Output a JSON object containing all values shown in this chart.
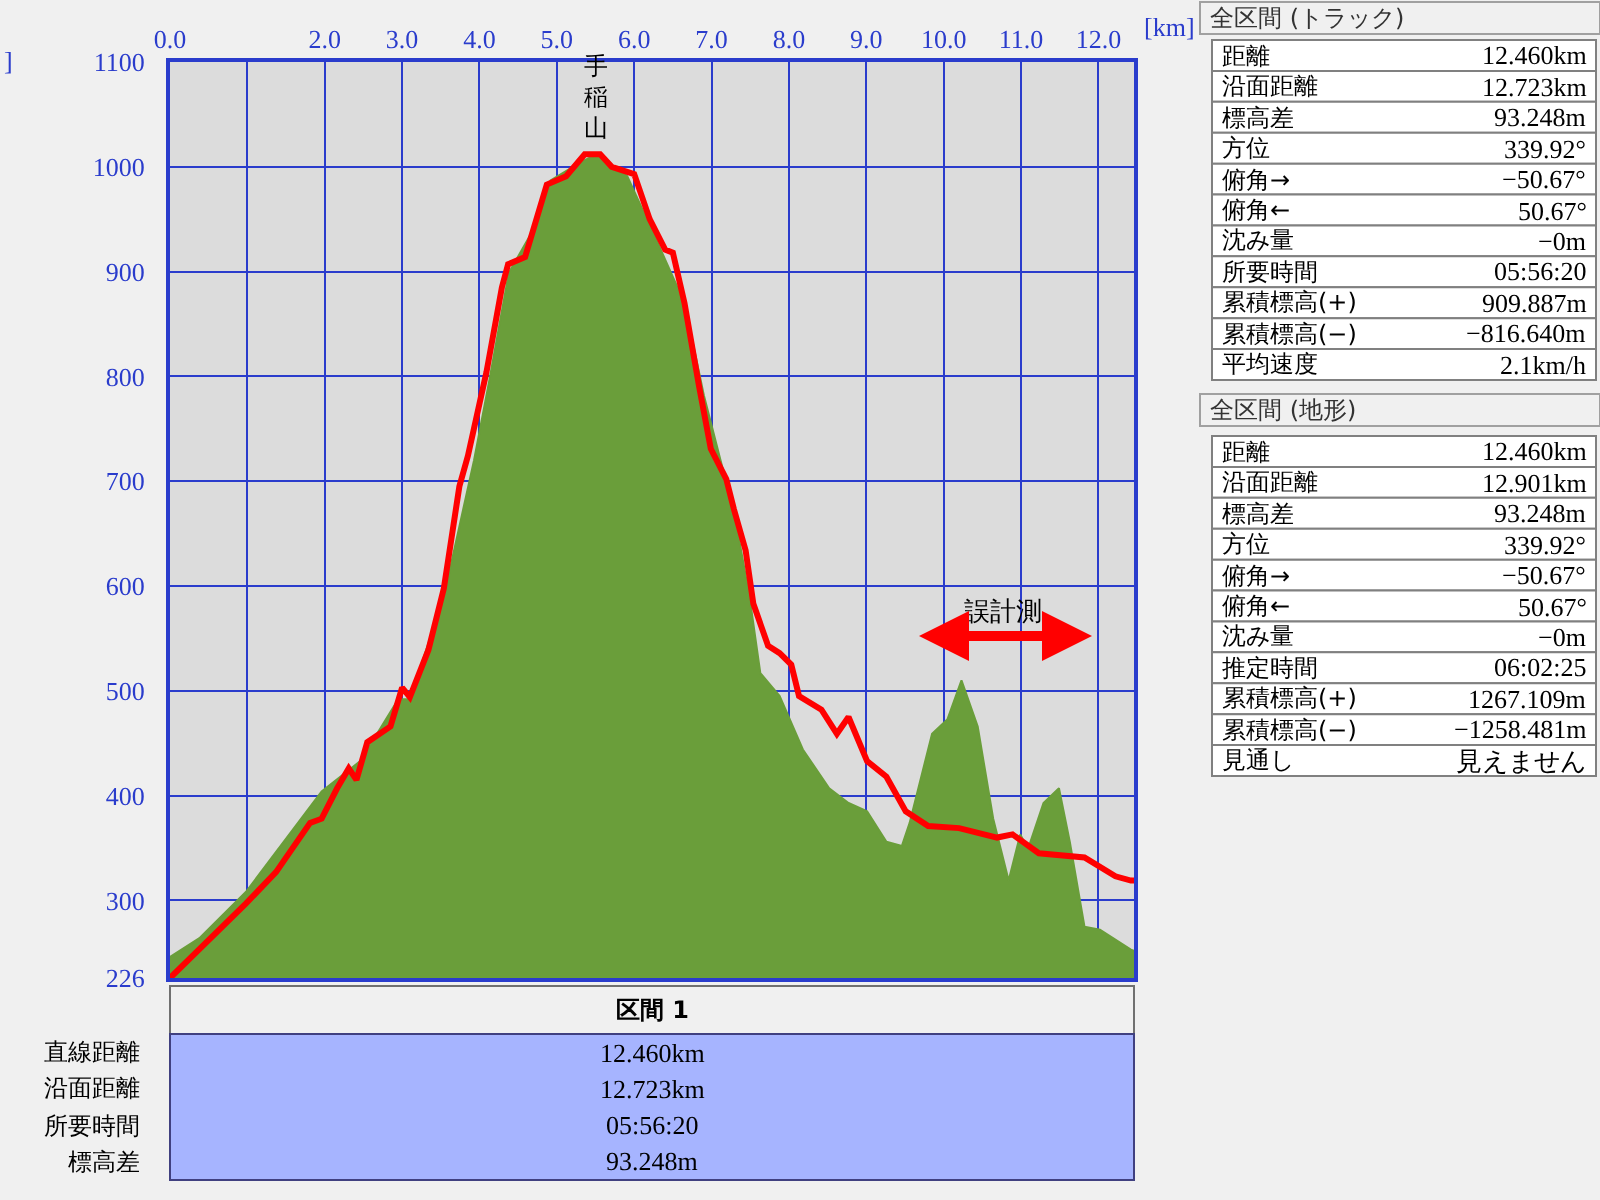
{
  "chart_data": [
    {
      "type": "area",
      "ylabel": "]",
      "xlabel": "[km]",
      "xlim": [
        0,
        12.46
      ],
      "ylim": [
        226,
        1100
      ],
      "xticks": [
        {
          "value": 0,
          "label": "0.0"
        },
        {
          "value": 1,
          "label": null
        },
        {
          "value": 2,
          "label": "2.0"
        },
        {
          "value": 3,
          "label": "3.0"
        },
        {
          "value": 4,
          "label": "4.0"
        },
        {
          "value": 5,
          "label": "5.0"
        },
        {
          "value": 6,
          "label": "6.0"
        },
        {
          "value": 7,
          "label": "7.0"
        },
        {
          "value": 8,
          "label": "8.0"
        },
        {
          "value": 9,
          "label": "9.0"
        },
        {
          "value": 10,
          "label": "10.0"
        },
        {
          "value": 11,
          "label": "11.0"
        },
        {
          "value": 12,
          "label": "12.0"
        }
      ],
      "yticks": [
        226,
        300,
        400,
        500,
        600,
        700,
        800,
        900,
        1000,
        1100
      ],
      "grid": true,
      "series": [
        {
          "type": "area",
          "color": "#6a9e3a",
          "x": [
            0,
            0.38,
            0.98,
            1.96,
            2.46,
            2.95,
            3.1,
            3.54,
            3.93,
            4.13,
            4.38,
            4.72,
            4.92,
            5.32,
            5.52,
            5.91,
            6.3,
            6.65,
            6.9,
            7.14,
            7.29,
            7.49,
            7.63,
            7.88,
            8.18,
            8.52,
            8.77,
            9.01,
            9.26,
            9.46,
            9.56,
            9.85,
            10.05,
            10.23,
            10.44,
            10.64,
            10.84,
            10.99,
            11.09,
            11.29,
            11.49,
            11.63,
            11.82,
            12.02,
            12.42,
            12.46
          ],
          "values": [
            246,
            264,
            308,
            404,
            433,
            492,
            492,
            590,
            720,
            797,
            899,
            943,
            987,
            1005,
            1012,
            991,
            928,
            870,
            782,
            713,
            671,
            590,
            517,
            495,
            444,
            407,
            393,
            385,
            356,
            352,
            374,
            459,
            473,
            510,
            466,
            378,
            319,
            363,
            349,
            393,
            407,
            356,
            275,
            272,
            253,
            252
          ]
        },
        {
          "type": "line",
          "color": "#ff0000",
          "x": [
            0,
            0.98,
            1.37,
            1.81,
            1.96,
            2.16,
            2.31,
            2.41,
            2.55,
            2.85,
            3.0,
            3.1,
            3.34,
            3.54,
            3.74,
            3.85,
            4.09,
            4.29,
            4.37,
            4.59,
            4.87,
            5.12,
            5.36,
            5.56,
            5.71,
            6.0,
            6.2,
            6.4,
            6.5,
            6.65,
            6.84,
            6.99,
            7.19,
            7.29,
            7.44,
            7.54,
            7.73,
            7.88,
            8.03,
            8.13,
            8.42,
            8.62,
            8.77,
            9.01,
            9.26,
            9.51,
            9.8,
            10.2,
            10.69,
            10.89,
            11.23,
            11.82,
            12.22,
            12.42,
            12.46
          ],
          "values": [
            226,
            297,
            327,
            374,
            378,
            407,
            426,
            415,
            451,
            466,
            503,
            494,
            539,
            598,
            695,
            724,
            804,
            885,
            907,
            914,
            983,
            991,
            1012,
            1012,
            1000,
            993,
            950,
            921,
            918,
            870,
            790,
            731,
            702,
            673,
            634,
            583,
            543,
            536,
            525,
            495,
            482,
            459,
            475,
            433,
            418,
            385,
            371,
            369,
            360,
            363,
            345,
            341,
            323,
            319,
            319
          ]
        }
      ],
      "annotations": [
        {
          "text": "手稲山",
          "x": 5.5,
          "y": 1012
        },
        "誤計測"
      ]
    },
    {
      "type": "other",
      "title": "全区間 (トラック)",
      "annotations": [
        "距離",
        "12.460km",
        "沿面距離",
        "12.723km",
        "標高差",
        "93.248m",
        "方位",
        "339.92°",
        "俯角→",
        "−50.67°",
        "俯角←",
        "50.67°",
        "沈み量",
        "−0m",
        "所要時間",
        "05:56:20",
        "累積標高(+)",
        "909.887m",
        "累積標高(−)",
        "−816.640m",
        "平均速度",
        "2.1km/h"
      ]
    },
    {
      "type": "other",
      "title": "全区間 (地形)",
      "annotations": [
        "距離",
        "12.460km",
        "沿面距離",
        "12.901km",
        "標高差",
        "93.248m",
        "方位",
        "339.92°",
        "俯角→",
        "−50.67°",
        "俯角←",
        "50.67°",
        "沈み量",
        "−0m",
        "推定時間",
        "06:02:25",
        "累積標高(+)",
        "1267.109m",
        "累積標高(−)",
        "−1258.481m",
        "見通し",
        "見えません"
      ]
    },
    {
      "type": "other",
      "title": "区間 1",
      "annotations": [
        "直線距離",
        "12.460km",
        "沿面距離",
        "12.723km",
        "所要時間",
        "05:56:20",
        "標高差",
        "93.248m"
      ]
    }
  ]
}
